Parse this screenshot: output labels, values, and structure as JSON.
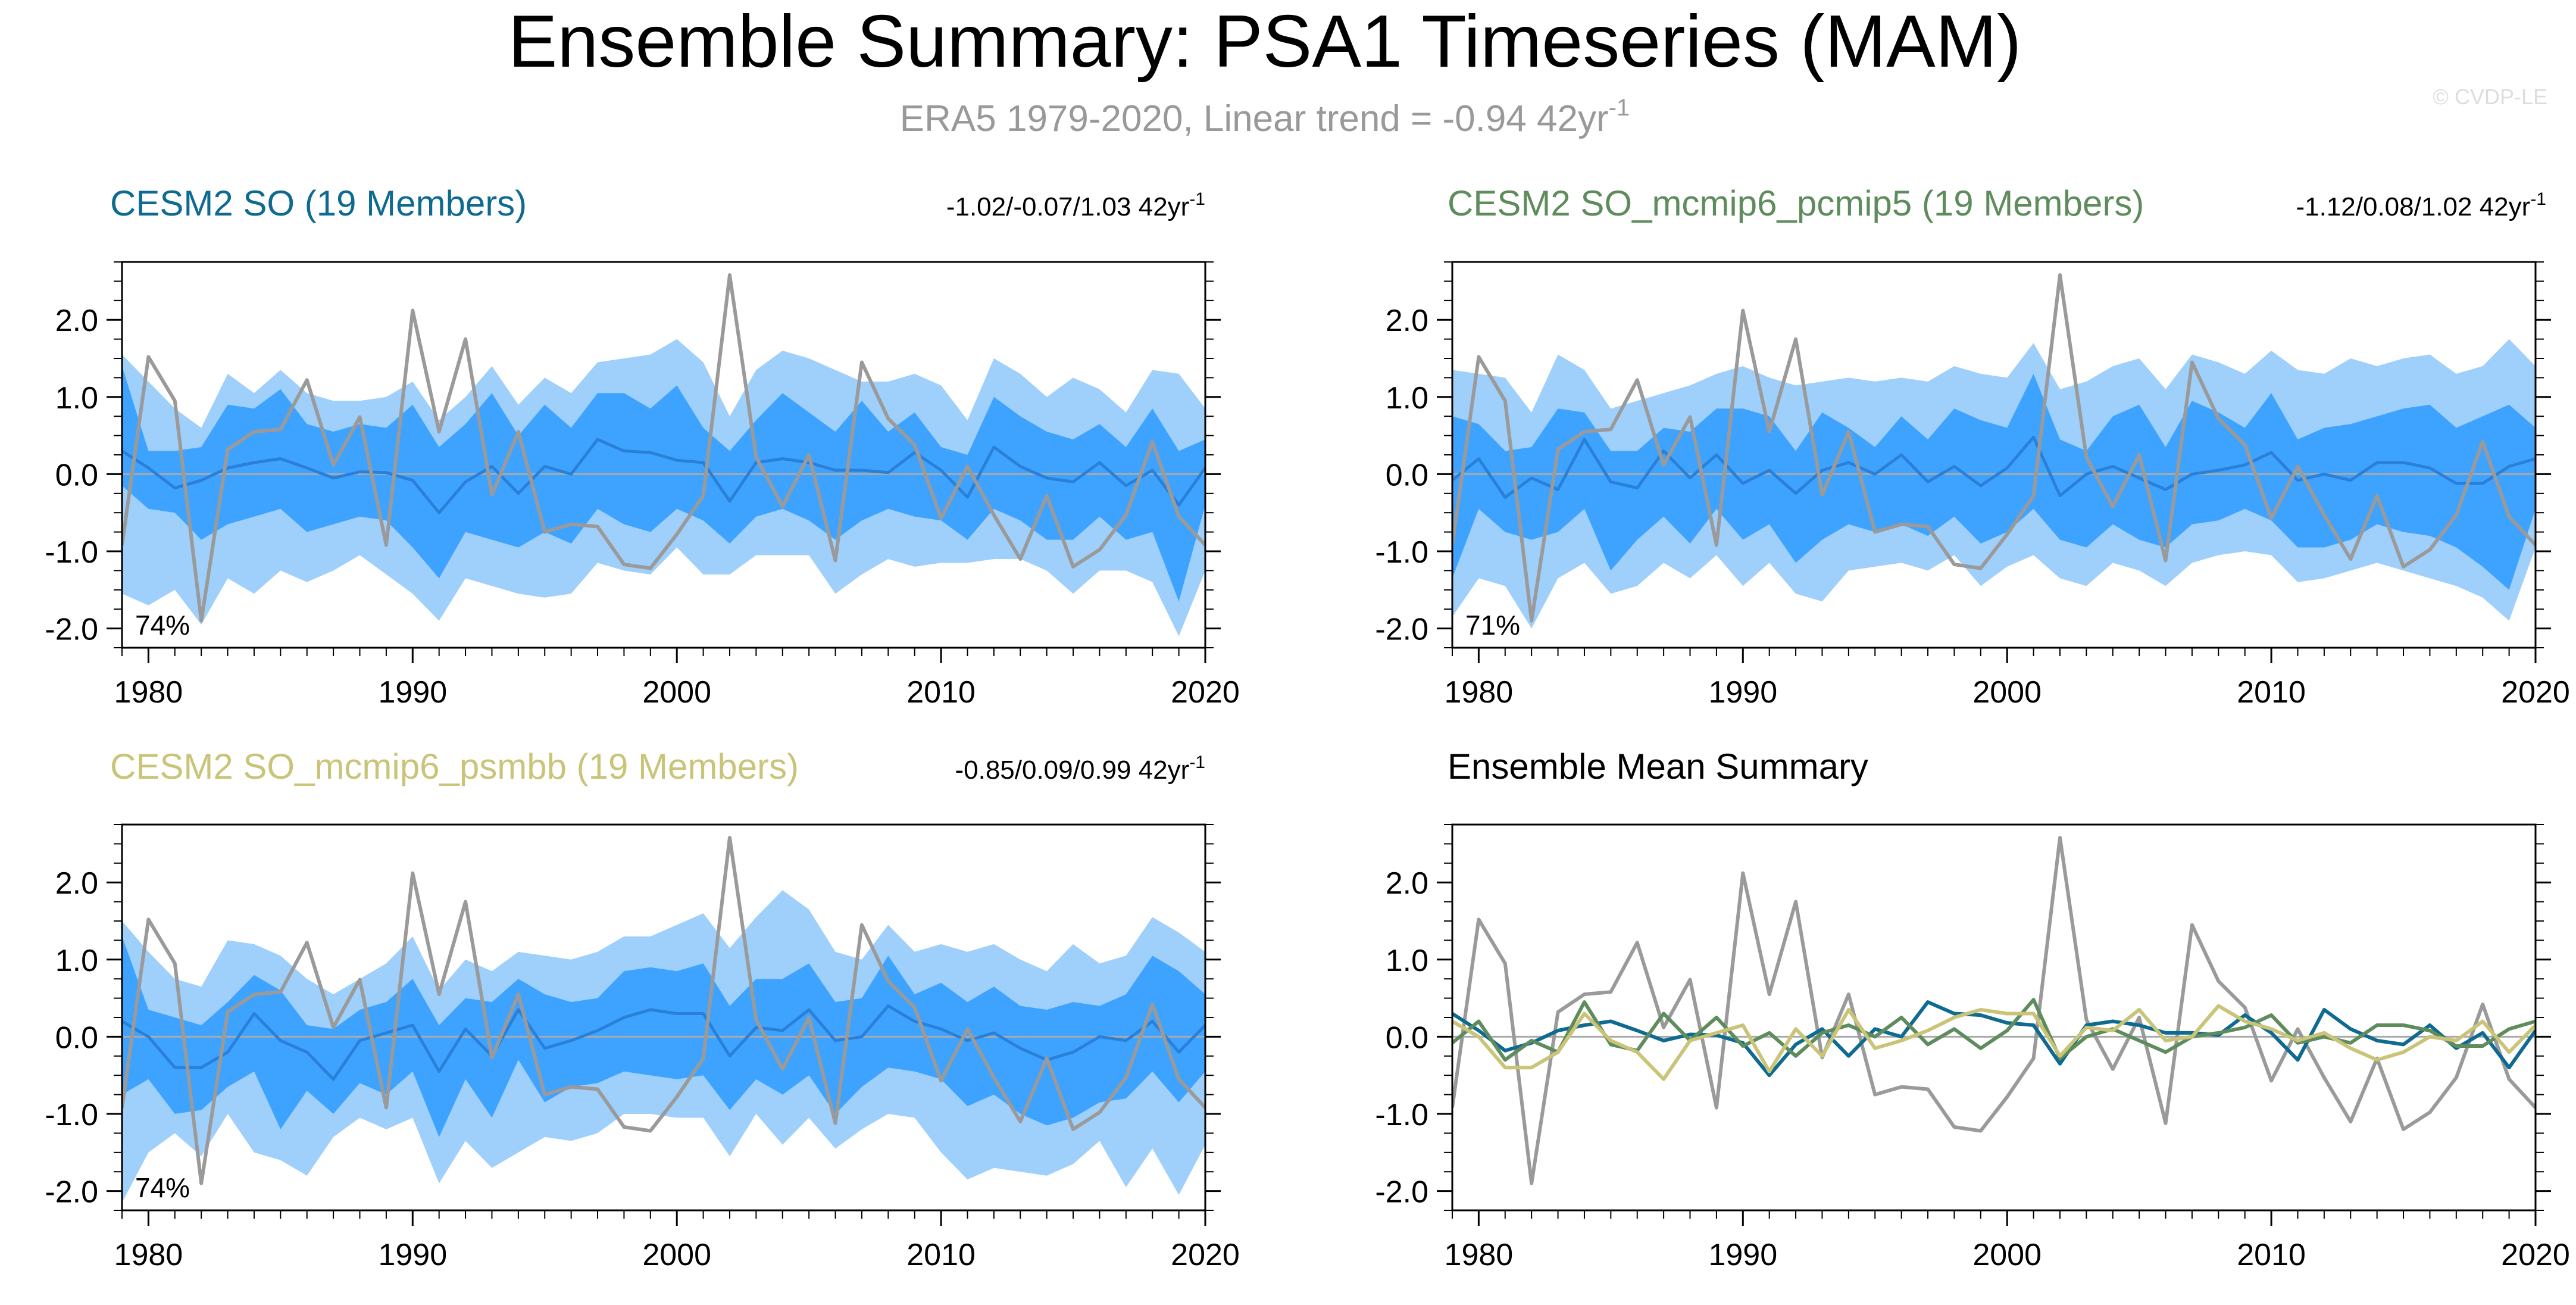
{
  "page": {
    "title": "Ensemble Summary: PSA1 Timeseries (MAM)",
    "subtitle_main": "ERA5 1979-2020, Linear trend = -0.94 42yr",
    "subtitle_sup": "-1",
    "credit": "© CVDP-LE"
  },
  "colors": {
    "obs": "#9a9a9a",
    "band_outer": "#9fcffb",
    "band_inner": "#3da3ff",
    "mean_line": "#2a80d8",
    "so": "#0e6a90",
    "pcmip5": "#5e8c5c",
    "psmbb": "#c9c477",
    "axis": "#000000",
    "zero": "#aaaaaa",
    "sub": "#999999"
  },
  "chart_data": [
    {
      "type": "area",
      "id": "cesm2-so",
      "title": "CESM2 SO (19 Members)",
      "title_color": "#0e6a90",
      "stats": "-1.02/-0.07/1.03 42yr",
      "stats_sup": "-1",
      "percent": "74%",
      "xlim": [
        1979,
        2020
      ],
      "ylim": [
        -2.25,
        2.75
      ],
      "xticks": [
        1980,
        1990,
        2000,
        2010,
        2020
      ],
      "yticks": [
        -2.0,
        -1.0,
        0.0,
        1.0,
        2.0
      ],
      "ytick_labels": [
        "-2.0",
        "-1.0",
        "0.0",
        "1.0",
        "2.0"
      ],
      "x_start": 1979,
      "obs": [
        -0.92,
        1.52,
        0.95,
        -1.9,
        0.32,
        0.55,
        0.58,
        1.22,
        0.12,
        0.74,
        -0.92,
        2.12,
        0.55,
        1.75,
        -0.27,
        0.55,
        -0.75,
        -0.65,
        -0.68,
        -1.17,
        -1.22,
        -0.78,
        -0.28,
        2.58,
        0.22,
        -0.42,
        0.25,
        -1.12,
        1.45,
        0.72,
        0.38,
        -0.57,
        0.1,
        -0.53,
        -1.1,
        -0.28,
        -1.2,
        -0.98,
        -0.53,
        0.42,
        -0.55,
        -0.92
      ],
      "mean": [
        0.3,
        0.08,
        -0.18,
        -0.08,
        0.08,
        0.15,
        0.2,
        0.08,
        -0.05,
        0.03,
        0.02,
        -0.08,
        -0.5,
        -0.1,
        0.1,
        -0.25,
        0.1,
        0.0,
        0.45,
        0.3,
        0.28,
        0.18,
        0.15,
        -0.35,
        0.15,
        0.2,
        0.15,
        0.05,
        0.05,
        0.02,
        0.28,
        0.05,
        -0.3,
        0.35,
        0.1,
        -0.05,
        -0.1,
        0.15,
        -0.15,
        0.05,
        -0.4,
        0.08
      ],
      "inner_upper": [
        1.4,
        0.3,
        0.3,
        0.35,
        0.9,
        0.85,
        1.1,
        0.65,
        0.55,
        0.65,
        0.6,
        0.9,
        0.35,
        0.65,
        1.05,
        0.5,
        0.9,
        0.6,
        1.05,
        1.05,
        0.85,
        1.15,
        0.6,
        0.3,
        0.7,
        1.05,
        0.8,
        0.55,
        0.95,
        0.55,
        0.8,
        0.35,
        0.25,
        1.0,
        0.75,
        0.55,
        0.45,
        0.65,
        0.35,
        0.85,
        0.3,
        0.45
      ],
      "inner_lower": [
        -0.15,
        -0.45,
        -0.5,
        -0.85,
        -0.65,
        -0.55,
        -0.45,
        -0.75,
        -0.65,
        -0.55,
        -0.6,
        -0.95,
        -1.35,
        -0.75,
        -0.85,
        -0.95,
        -0.75,
        -0.9,
        -0.45,
        -0.65,
        -0.75,
        -0.45,
        -0.6,
        -0.9,
        -0.55,
        -0.45,
        -0.6,
        -0.85,
        -0.6,
        -0.45,
        -0.55,
        -0.6,
        -0.85,
        -0.45,
        -0.6,
        -0.85,
        -0.85,
        -0.55,
        -0.85,
        -0.75,
        -1.65,
        -0.4
      ],
      "outer_upper": [
        1.55,
        1.2,
        0.85,
        0.6,
        1.3,
        1.05,
        1.35,
        1.05,
        0.95,
        0.95,
        1.0,
        1.2,
        0.7,
        1.0,
        1.4,
        0.9,
        1.25,
        1.05,
        1.45,
        1.5,
        1.55,
        1.75,
        1.45,
        0.75,
        1.35,
        1.6,
        1.5,
        1.35,
        1.2,
        1.2,
        1.3,
        1.15,
        0.7,
        1.5,
        1.3,
        1.0,
        1.25,
        1.1,
        0.8,
        1.35,
        1.3,
        0.85
      ],
      "outer_lower": [
        -1.55,
        -1.7,
        -1.5,
        -1.95,
        -1.35,
        -1.55,
        -1.25,
        -1.4,
        -1.25,
        -1.05,
        -1.3,
        -1.55,
        -1.9,
        -1.35,
        -1.45,
        -1.55,
        -1.6,
        -1.55,
        -1.15,
        -1.25,
        -1.3,
        -0.95,
        -1.3,
        -1.3,
        -1.05,
        -1.05,
        -1.05,
        -1.55,
        -1.3,
        -1.1,
        -1.2,
        -1.15,
        -1.15,
        -1.1,
        -1.1,
        -1.25,
        -1.55,
        -1.25,
        -1.25,
        -1.4,
        -2.1,
        -1.25
      ]
    },
    {
      "type": "area",
      "id": "cesm2-so-pcmip5",
      "title": "CESM2 SO_mcmip6_pcmip5 (19 Members)",
      "title_color": "#5e8c5c",
      "stats": "-1.12/0.08/1.02 42yr",
      "stats_sup": "-1",
      "percent": "71%",
      "xlim": [
        1979,
        2020
      ],
      "ylim": [
        -2.25,
        2.75
      ],
      "xticks": [
        1980,
        1990,
        2000,
        2010,
        2020
      ],
      "yticks": [
        -2.0,
        -1.0,
        0.0,
        1.0,
        2.0
      ],
      "ytick_labels": [
        "-2.0",
        "-1.0",
        "0.0",
        "1.0",
        "2.0"
      ],
      "x_start": 1979,
      "obs": [
        -0.92,
        1.52,
        0.95,
        -1.9,
        0.32,
        0.55,
        0.58,
        1.22,
        0.12,
        0.74,
        -0.92,
        2.12,
        0.55,
        1.75,
        -0.27,
        0.55,
        -0.75,
        -0.65,
        -0.68,
        -1.17,
        -1.22,
        -0.78,
        -0.28,
        2.58,
        0.22,
        -0.42,
        0.25,
        -1.12,
        1.45,
        0.72,
        0.38,
        -0.57,
        0.1,
        -0.53,
        -1.1,
        -0.28,
        -1.2,
        -0.98,
        -0.53,
        0.42,
        -0.55,
        -0.92
      ],
      "mean": [
        -0.08,
        0.2,
        -0.3,
        -0.05,
        -0.2,
        0.45,
        -0.1,
        -0.18,
        0.3,
        -0.05,
        0.25,
        -0.12,
        0.05,
        -0.25,
        0.05,
        0.15,
        0.0,
        0.25,
        -0.1,
        0.1,
        -0.15,
        0.08,
        0.48,
        -0.28,
        0.0,
        0.1,
        -0.05,
        -0.2,
        0.0,
        0.05,
        0.12,
        0.28,
        -0.08,
        0.0,
        -0.08,
        0.15,
        0.15,
        0.08,
        -0.12,
        -0.12,
        0.1,
        0.2
      ],
      "inner_upper": [
        0.75,
        0.65,
        0.3,
        0.35,
        0.85,
        0.8,
        0.3,
        0.3,
        0.6,
        0.55,
        0.85,
        0.85,
        0.75,
        0.3,
        0.8,
        0.6,
        0.35,
        0.75,
        0.45,
        0.85,
        0.7,
        0.6,
        1.3,
        0.45,
        0.3,
        0.75,
        0.9,
        0.35,
        0.95,
        0.8,
        0.6,
        1.05,
        0.45,
        0.6,
        0.65,
        0.75,
        0.85,
        0.9,
        0.6,
        0.75,
        0.9,
        0.6
      ],
      "inner_lower": [
        -1.35,
        -0.45,
        -0.75,
        -0.85,
        -0.75,
        -0.45,
        -1.25,
        -0.85,
        -0.55,
        -0.9,
        -0.45,
        -0.85,
        -0.65,
        -1.15,
        -0.85,
        -0.65,
        -0.75,
        -0.65,
        -0.8,
        -0.55,
        -0.9,
        -0.75,
        -0.45,
        -0.85,
        -0.95,
        -0.65,
        -0.85,
        -0.95,
        -0.65,
        -0.6,
        -0.45,
        -0.6,
        -0.95,
        -0.95,
        -0.85,
        -0.65,
        -0.75,
        -0.8,
        -0.95,
        -1.2,
        -1.5,
        -0.45
      ],
      "outer_upper": [
        1.35,
        1.3,
        1.25,
        0.8,
        1.55,
        1.35,
        0.85,
        0.95,
        1.05,
        1.15,
        1.3,
        1.4,
        1.25,
        1.15,
        1.2,
        1.25,
        1.2,
        1.25,
        1.2,
        1.4,
        1.3,
        1.25,
        1.7,
        1.1,
        1.2,
        1.4,
        1.5,
        1.1,
        1.55,
        1.45,
        1.3,
        1.6,
        1.35,
        1.3,
        1.5,
        1.4,
        1.5,
        1.55,
        1.3,
        1.4,
        1.75,
        1.4
      ],
      "outer_lower": [
        -1.85,
        -1.35,
        -1.45,
        -2.0,
        -1.35,
        -1.15,
        -1.55,
        -1.45,
        -1.15,
        -1.35,
        -1.05,
        -1.45,
        -1.15,
        -1.55,
        -1.65,
        -1.25,
        -1.2,
        -1.15,
        -1.25,
        -1.05,
        -1.45,
        -1.2,
        -1.05,
        -1.35,
        -1.45,
        -1.15,
        -1.25,
        -1.45,
        -1.15,
        -1.05,
        -1.0,
        -1.05,
        -1.4,
        -1.35,
        -1.25,
        -1.15,
        -1.25,
        -1.35,
        -1.45,
        -1.6,
        -1.9,
        -0.95
      ]
    },
    {
      "type": "area",
      "id": "cesm2-so-psmbb",
      "title": "CESM2 SO_mcmip6_psmbb (19 Members)",
      "title_color": "#c9c477",
      "stats": "-0.85/0.09/0.99 42yr",
      "stats_sup": "-1",
      "percent": "74%",
      "xlim": [
        1979,
        2020
      ],
      "ylim": [
        -2.25,
        2.75
      ],
      "xticks": [
        1980,
        1990,
        2000,
        2010,
        2020
      ],
      "yticks": [
        -2.0,
        -1.0,
        0.0,
        1.0,
        2.0
      ],
      "ytick_labels": [
        "-2.0",
        "-1.0",
        "0.0",
        "1.0",
        "2.0"
      ],
      "x_start": 1979,
      "obs": [
        -0.92,
        1.52,
        0.95,
        -1.9,
        0.32,
        0.55,
        0.58,
        1.22,
        0.12,
        0.74,
        -0.92,
        2.12,
        0.55,
        1.75,
        -0.27,
        0.55,
        -0.75,
        -0.65,
        -0.68,
        -1.17,
        -1.22,
        -0.78,
        -0.28,
        2.58,
        0.22,
        -0.42,
        0.25,
        -1.12,
        1.45,
        0.72,
        0.38,
        -0.57,
        0.1,
        -0.53,
        -1.1,
        -0.28,
        -1.2,
        -0.98,
        -0.53,
        0.42,
        -0.55,
        -0.92
      ],
      "mean": [
        0.2,
        0.0,
        -0.4,
        -0.4,
        -0.2,
        0.3,
        -0.05,
        -0.2,
        -0.55,
        -0.05,
        0.05,
        0.15,
        -0.45,
        0.1,
        -0.25,
        0.35,
        -0.15,
        -0.05,
        0.08,
        0.25,
        0.35,
        0.3,
        0.3,
        -0.25,
        0.12,
        0.08,
        0.35,
        -0.05,
        0.0,
        0.4,
        0.2,
        0.1,
        -0.05,
        0.05,
        -0.15,
        -0.3,
        -0.2,
        0.0,
        -0.05,
        0.2,
        -0.2,
        0.15
      ],
      "inner_upper": [
        1.3,
        0.35,
        0.25,
        0.15,
        0.45,
        0.8,
        0.6,
        0.15,
        0.1,
        0.35,
        0.45,
        0.75,
        0.15,
        0.5,
        0.45,
        0.75,
        0.55,
        0.45,
        0.5,
        0.85,
        0.9,
        0.85,
        0.95,
        0.4,
        0.75,
        0.75,
        0.95,
        0.45,
        0.5,
        1.05,
        0.55,
        0.7,
        0.45,
        0.65,
        0.4,
        0.35,
        0.45,
        0.4,
        0.55,
        1.05,
        0.85,
        0.55
      ],
      "inner_lower": [
        -0.75,
        -0.55,
        -1.0,
        -0.95,
        -0.65,
        -0.45,
        -1.2,
        -0.7,
        -1.0,
        -0.6,
        -0.75,
        -0.45,
        -1.3,
        -0.55,
        -1.05,
        -0.3,
        -0.85,
        -0.65,
        -0.6,
        -0.45,
        -0.5,
        -0.55,
        -0.5,
        -0.95,
        -0.55,
        -0.75,
        -0.5,
        -1.0,
        -0.65,
        -0.4,
        -0.45,
        -0.55,
        -0.9,
        -0.75,
        -1.0,
        -1.15,
        -1.05,
        -0.85,
        -0.8,
        -0.45,
        -0.85,
        -0.45
      ],
      "outer_upper": [
        1.5,
        1.1,
        0.75,
        0.65,
        1.25,
        1.2,
        1.05,
        0.75,
        0.55,
        0.75,
        0.95,
        1.3,
        0.6,
        1.0,
        0.85,
        1.1,
        1.05,
        1.0,
        1.1,
        1.3,
        1.3,
        1.45,
        1.6,
        1.15,
        1.55,
        1.9,
        1.65,
        1.1,
        1.0,
        1.45,
        1.1,
        1.2,
        1.1,
        1.2,
        1.0,
        0.85,
        1.2,
        0.95,
        1.05,
        1.55,
        1.35,
        1.1
      ],
      "outer_lower": [
        -2.15,
        -1.5,
        -1.25,
        -1.55,
        -1.0,
        -1.5,
        -1.6,
        -1.8,
        -1.3,
        -1.05,
        -1.2,
        -1.05,
        -1.9,
        -1.35,
        -1.7,
        -1.5,
        -1.3,
        -1.35,
        -1.25,
        -1.0,
        -1.0,
        -1.05,
        -1.05,
        -1.55,
        -1.0,
        -1.4,
        -1.05,
        -1.45,
        -1.2,
        -1.0,
        -1.05,
        -1.5,
        -1.85,
        -1.7,
        -1.75,
        -1.8,
        -1.65,
        -1.35,
        -1.95,
        -1.45,
        -2.05,
        -1.4
      ]
    },
    {
      "type": "line",
      "id": "ensemble-mean-summary",
      "title": "Ensemble Mean Summary",
      "title_color": "#000000",
      "xlim": [
        1979,
        2020
      ],
      "ylim": [
        -2.25,
        2.75
      ],
      "xticks": [
        1980,
        1990,
        2000,
        2010,
        2020
      ],
      "yticks": [
        -2.0,
        -1.0,
        0.0,
        1.0,
        2.0
      ],
      "ytick_labels": [
        "-2.0",
        "-1.0",
        "0.0",
        "1.0",
        "2.0"
      ],
      "x_start": 1979,
      "series": [
        {
          "name": "ERA5",
          "color": "#9a9a9a",
          "values": [
            -0.92,
            1.52,
            0.95,
            -1.9,
            0.32,
            0.55,
            0.58,
            1.22,
            0.12,
            0.74,
            -0.92,
            2.12,
            0.55,
            1.75,
            -0.27,
            0.55,
            -0.75,
            -0.65,
            -0.68,
            -1.17,
            -1.22,
            -0.78,
            -0.28,
            2.58,
            0.22,
            -0.42,
            0.25,
            -1.12,
            1.45,
            0.72,
            0.38,
            -0.57,
            0.1,
            -0.53,
            -1.1,
            -0.28,
            -1.2,
            -0.98,
            -0.53,
            0.42,
            -0.55,
            -0.92
          ]
        },
        {
          "name": "CESM2 SO",
          "color": "#0e6a90",
          "values": [
            0.3,
            0.08,
            -0.18,
            -0.08,
            0.08,
            0.15,
            0.2,
            0.08,
            -0.05,
            0.03,
            0.02,
            -0.08,
            -0.5,
            -0.1,
            0.1,
            -0.25,
            0.1,
            0.0,
            0.45,
            0.3,
            0.28,
            0.18,
            0.15,
            -0.35,
            0.15,
            0.2,
            0.15,
            0.05,
            0.05,
            0.02,
            0.28,
            0.05,
            -0.3,
            0.35,
            0.1,
            -0.05,
            -0.1,
            0.15,
            -0.15,
            0.05,
            -0.4,
            0.08
          ]
        },
        {
          "name": "CESM2 SO_mcmip6_pcmip5",
          "color": "#5e8c5c",
          "values": [
            -0.08,
            0.2,
            -0.3,
            -0.05,
            -0.2,
            0.45,
            -0.1,
            -0.18,
            0.3,
            -0.05,
            0.25,
            -0.12,
            0.05,
            -0.25,
            0.05,
            0.15,
            0.0,
            0.25,
            -0.1,
            0.1,
            -0.15,
            0.08,
            0.48,
            -0.28,
            0.0,
            0.1,
            -0.05,
            -0.2,
            0.0,
            0.05,
            0.12,
            0.28,
            -0.08,
            0.0,
            -0.08,
            0.15,
            0.15,
            0.08,
            -0.12,
            -0.12,
            0.1,
            0.2
          ]
        },
        {
          "name": "CESM2 SO_mcmip6_psmbb",
          "color": "#c9c477",
          "values": [
            0.2,
            0.0,
            -0.4,
            -0.4,
            -0.2,
            0.3,
            -0.05,
            -0.2,
            -0.55,
            -0.05,
            0.05,
            0.15,
            -0.45,
            0.1,
            -0.25,
            0.35,
            -0.15,
            -0.05,
            0.08,
            0.25,
            0.35,
            0.3,
            0.3,
            -0.25,
            0.12,
            0.08,
            0.35,
            -0.05,
            0.0,
            0.4,
            0.2,
            0.1,
            -0.05,
            0.05,
            -0.15,
            -0.3,
            -0.2,
            0.0,
            -0.05,
            0.2,
            -0.2,
            0.15
          ]
        }
      ]
    }
  ]
}
